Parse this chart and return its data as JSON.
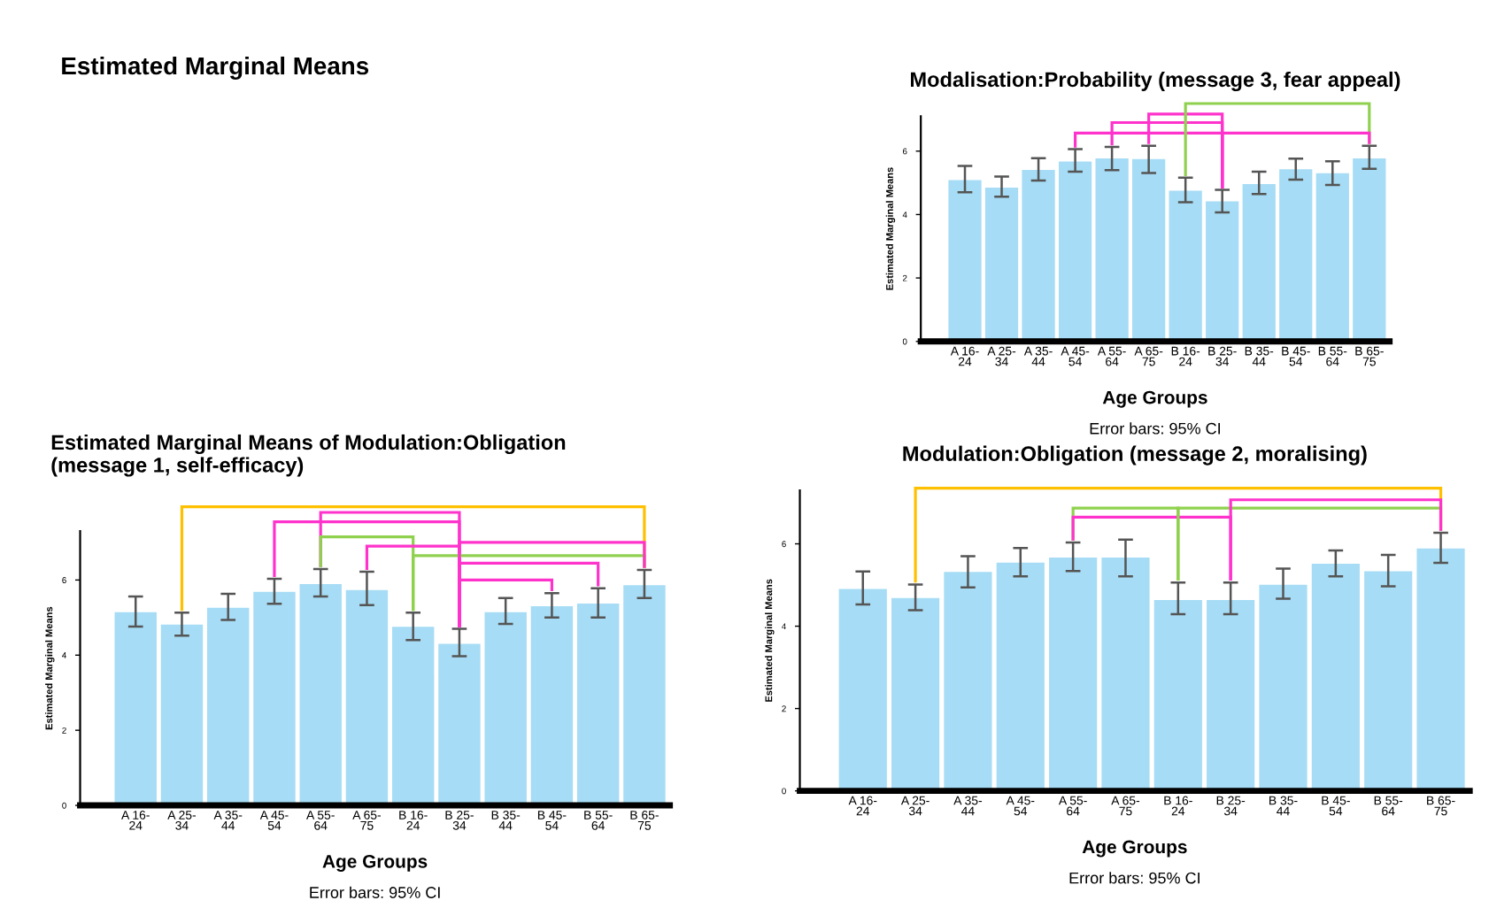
{
  "chart_data": [
    {
      "type": "other",
      "title": "Estimated Marginal Means"
    },
    {
      "type": "bar",
      "title": "Modalisation:Probability (message 3, fear appeal)",
      "xlabel": "Age Groups",
      "ylabel": "Estimated Marginal Means",
      "annotations": [
        "Error bars: 95% CI"
      ],
      "categories": [
        "A 16-\n24",
        "A 25-\n34",
        "A 35-\n44",
        "A 45-\n54",
        "A 55-\n64",
        "A 65-\n75",
        "B 16-\n24",
        "B 25-\n34",
        "B 35-\n44",
        "B 45-\n54",
        "B 55-\n64",
        "B 65-\n75"
      ],
      "values": [
        5.12,
        4.88,
        5.44,
        5.7,
        5.8,
        5.78,
        4.78,
        4.45,
        4.99,
        5.46,
        5.33,
        5.8
      ],
      "errors": [
        [
          4.7,
          5.53
        ],
        [
          4.56,
          5.2
        ],
        [
          5.07,
          5.78
        ],
        [
          5.35,
          6.06
        ],
        [
          5.4,
          6.13
        ],
        [
          5.31,
          6.17
        ],
        [
          4.39,
          5.16
        ],
        [
          4.07,
          4.78
        ],
        [
          4.65,
          5.35
        ],
        [
          5.1,
          5.76
        ],
        [
          4.93,
          5.68
        ],
        [
          5.44,
          6.17
        ]
      ],
      "color": "#a6dcf5",
      "ylim": [
        0,
        7.1
      ],
      "yticks": [
        0,
        2,
        4,
        6
      ],
      "grid": false
    },
    {
      "type": "bar",
      "title": "Estimated Marginal Means of Modulation:Obligation\n(message 1, self-efficacy)",
      "xlabel": "Age Groups",
      "ylabel": "Estimated Marginal Means",
      "annotations": [
        "Error bars: 95% CI"
      ],
      "categories": [
        "A 16-\n24",
        "A 25-\n34",
        "A 35-\n44",
        "A 45-\n54",
        "A 55-\n64",
        "A 65-\n75",
        "B 16-\n24",
        "B 25-\n34",
        "B 35-\n44",
        "B 45-\n54",
        "B 55-\n64",
        "B 65-\n75"
      ],
      "values": [
        5.17,
        4.84,
        5.29,
        5.71,
        5.92,
        5.76,
        4.78,
        4.33,
        5.17,
        5.33,
        5.4,
        5.89
      ],
      "errors": [
        [
          4.76,
          5.56
        ],
        [
          4.52,
          5.13
        ],
        [
          4.94,
          5.63
        ],
        [
          5.37,
          6.03
        ],
        [
          5.56,
          6.29
        ],
        [
          5.33,
          6.22
        ],
        [
          4.4,
          5.13
        ],
        [
          3.97,
          4.7
        ],
        [
          4.83,
          5.52
        ],
        [
          5.0,
          5.65
        ],
        [
          5.0,
          5.78
        ],
        [
          5.52,
          6.27
        ]
      ],
      "color": "#a6dcf5",
      "ylim": [
        0,
        7.3
      ],
      "yticks": [
        0,
        2,
        4,
        6
      ],
      "grid": false
    },
    {
      "type": "bar",
      "title": "Modulation:Obligation (message 2, moralising)",
      "xlabel": "Age Groups",
      "ylabel": "Estimated Marginal Means",
      "annotations": [
        "Error bars: 95% CI"
      ],
      "categories": [
        "A 16-\n24",
        "A 25-\n34",
        "A 35-\n44",
        "A 45-\n54",
        "A 55-\n64",
        "A 65-\n75",
        "B 16-\n24",
        "B 25-\n34",
        "B 35-\n44",
        "B 45-\n54",
        "B 55-\n64",
        "B 65-\n75"
      ],
      "values": [
        4.93,
        4.71,
        5.34,
        5.57,
        5.69,
        5.69,
        4.66,
        4.66,
        5.03,
        5.54,
        5.36,
        5.91
      ],
      "errors": [
        [
          4.53,
          5.33
        ],
        [
          4.39,
          5.01
        ],
        [
          4.94,
          5.7
        ],
        [
          5.21,
          5.9
        ],
        [
          5.34,
          6.03
        ],
        [
          5.21,
          6.1
        ],
        [
          4.29,
          5.06
        ],
        [
          4.29,
          5.06
        ],
        [
          4.67,
          5.4
        ],
        [
          5.21,
          5.84
        ],
        [
          4.97,
          5.73
        ],
        [
          5.54,
          6.27
        ]
      ],
      "color": "#a6dcf5",
      "ylim": [
        0,
        7.3
      ],
      "yticks": [
        0,
        2,
        4,
        6
      ],
      "grid": false
    }
  ]
}
